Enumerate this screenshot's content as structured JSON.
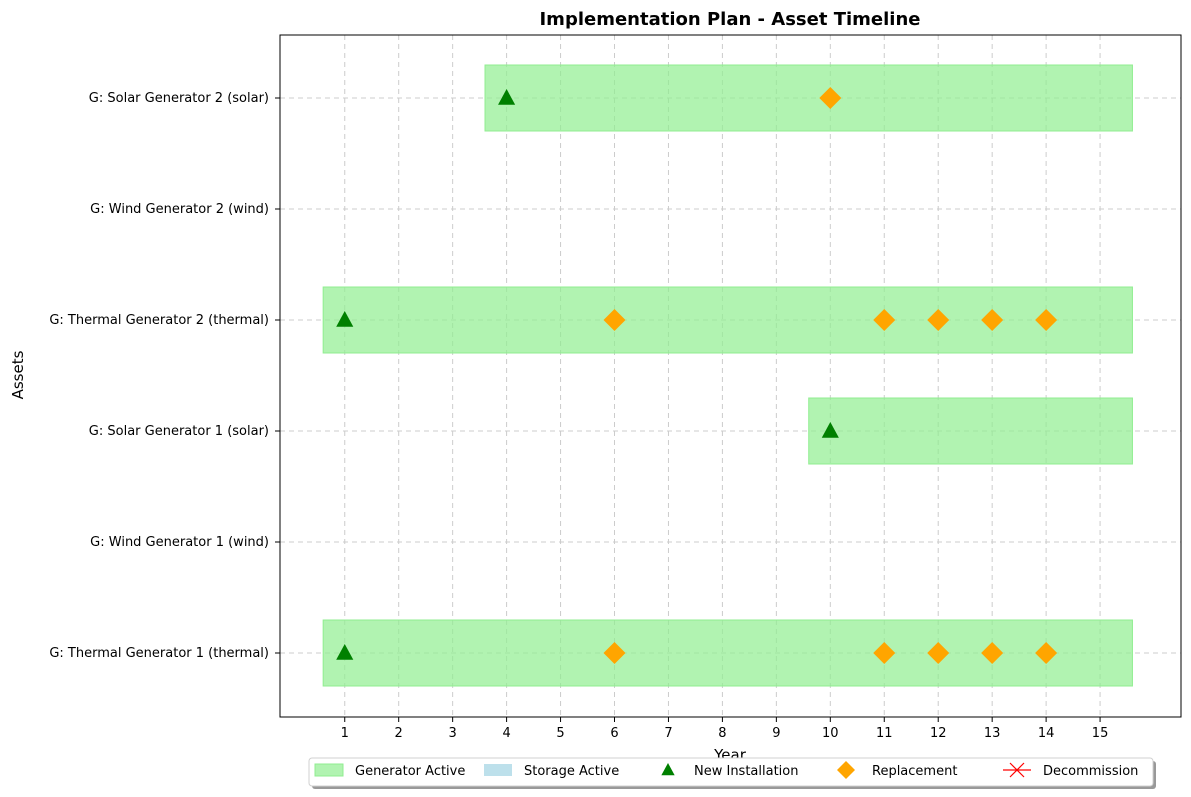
{
  "chart_data": {
    "type": "timeline",
    "title": "Implementation Plan - Asset Timeline",
    "xlabel": "Year",
    "ylabel": "Assets",
    "xlim": [
      -0.2,
      16.5
    ],
    "x_ticks": [
      1,
      2,
      3,
      4,
      5,
      6,
      7,
      8,
      9,
      10,
      11,
      12,
      13,
      14,
      15
    ],
    "grid": true,
    "legend_position": "bottom-center",
    "colors": {
      "generator_active": "#90ee90",
      "storage_active": "#add8e6",
      "new_installation": "#008000",
      "replacement": "#ffa500",
      "decommission": "#ff0000"
    },
    "assets": [
      {
        "label": "G: Thermal Generator 1 (thermal)",
        "active": [
          0.6,
          15.6
        ],
        "installations": [
          1
        ],
        "replacements": [
          6,
          11,
          12,
          13,
          14
        ],
        "decommissions": []
      },
      {
        "label": "G: Wind Generator 1 (wind)",
        "active": null,
        "installations": [],
        "replacements": [],
        "decommissions": []
      },
      {
        "label": "G: Solar Generator 1 (solar)",
        "active": [
          9.6,
          15.6
        ],
        "installations": [
          10
        ],
        "replacements": [],
        "decommissions": []
      },
      {
        "label": "G: Thermal Generator 2 (thermal)",
        "active": [
          0.6,
          15.6
        ],
        "installations": [
          1
        ],
        "replacements": [
          6,
          11,
          12,
          13,
          14
        ],
        "decommissions": []
      },
      {
        "label": "G: Wind Generator 2 (wind)",
        "active": null,
        "installations": [],
        "replacements": [],
        "decommissions": []
      },
      {
        "label": "G: Solar Generator 2 (solar)",
        "active": [
          3.6,
          15.6
        ],
        "installations": [
          4
        ],
        "replacements": [
          10
        ],
        "decommissions": []
      }
    ],
    "legend": [
      {
        "label": "Generator Active",
        "symbol": "patch-green"
      },
      {
        "label": "Storage Active",
        "symbol": "patch-blue"
      },
      {
        "label": "New Installation",
        "symbol": "triangle"
      },
      {
        "label": "Replacement",
        "symbol": "diamond"
      },
      {
        "label": "Decommission",
        "symbol": "x-mark"
      }
    ]
  }
}
